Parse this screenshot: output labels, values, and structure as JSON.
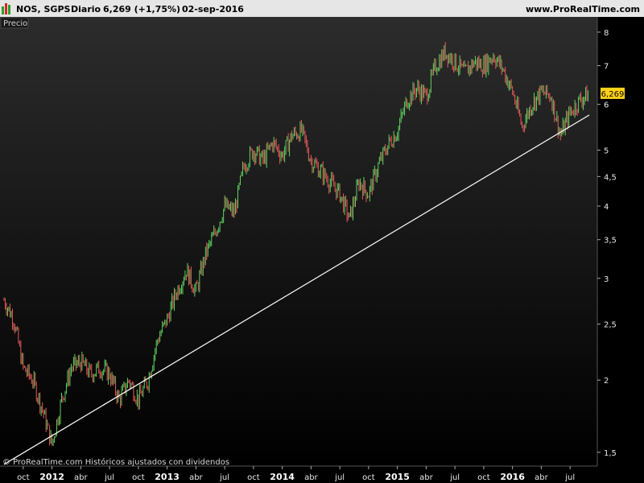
{
  "header": {
    "instrument": "NOS, SGPS",
    "period": "Diario",
    "last_change": "6,269 (+1,75%)",
    "date": "02-sep-2016",
    "site": "www.ProRealTime.com"
  },
  "panel_label": "Precio",
  "footer": "© ProRealTime.com Históricos ajustados con dividendos",
  "price_tag": "6,269",
  "colors": {
    "up": "#5fd35f",
    "down": "#e85a5a",
    "trendline": "#ffffff",
    "price_tag_bg": "#ffd21a",
    "header_bg": "#e6e6e6"
  },
  "chart_data": {
    "type": "line",
    "scale": "log",
    "y_ticks": [
      "1,5",
      "2",
      "2,5",
      "3",
      "3,5",
      "4",
      "4,5",
      "5",
      "6",
      "7",
      "8"
    ],
    "y_tick_values": [
      1.5,
      2,
      2.5,
      3,
      3.5,
      4,
      4.5,
      5,
      6,
      7,
      8
    ],
    "ylim": [
      1.42,
      8.5
    ],
    "x_ticks": [
      {
        "label": "oct",
        "bold": false
      },
      {
        "label": "2012",
        "bold": true
      },
      {
        "label": "abr",
        "bold": false
      },
      {
        "label": "jul",
        "bold": false
      },
      {
        "label": "oct",
        "bold": false
      },
      {
        "label": "2013",
        "bold": true
      },
      {
        "label": "abr",
        "bold": false
      },
      {
        "label": "jul",
        "bold": false
      },
      {
        "label": "oct",
        "bold": false
      },
      {
        "label": "2014",
        "bold": true
      },
      {
        "label": "abr",
        "bold": false
      },
      {
        "label": "jul",
        "bold": false
      },
      {
        "label": "oct",
        "bold": false
      },
      {
        "label": "2015",
        "bold": true
      },
      {
        "label": "abr",
        "bold": false
      },
      {
        "label": "jul",
        "bold": false
      },
      {
        "label": "oct",
        "bold": false
      },
      {
        "label": "2016",
        "bold": true
      },
      {
        "label": "abr",
        "bold": false
      },
      {
        "label": "jul",
        "bold": false
      }
    ],
    "x_range": [
      "2011-08",
      "2016-09"
    ],
    "series": [
      {
        "style": "bars",
        "points": [
          [
            "2011-08",
            2.75
          ],
          [
            "2011-09",
            2.55
          ],
          [
            "2011-10",
            2.1
          ],
          [
            "2011-11",
            2.0
          ],
          [
            "2011-12",
            1.78
          ],
          [
            "2012-01",
            1.55
          ],
          [
            "2012-02",
            1.85
          ],
          [
            "2012-03",
            2.1
          ],
          [
            "2012-04",
            2.15
          ],
          [
            "2012-05",
            2.05
          ],
          [
            "2012-06",
            2.1
          ],
          [
            "2012-07",
            2.05
          ],
          [
            "2012-08",
            1.85
          ],
          [
            "2012-09",
            2.0
          ],
          [
            "2012-10",
            1.85
          ],
          [
            "2012-11",
            2.0
          ],
          [
            "2012-12",
            2.35
          ],
          [
            "2013-01",
            2.55
          ],
          [
            "2013-02",
            2.85
          ],
          [
            "2013-03",
            3.1
          ],
          [
            "2013-04",
            2.85
          ],
          [
            "2013-05",
            3.3
          ],
          [
            "2013-06",
            3.6
          ],
          [
            "2013-07",
            4.0
          ],
          [
            "2013-08",
            3.9
          ],
          [
            "2013-09",
            4.7
          ],
          [
            "2013-10",
            5.0
          ],
          [
            "2013-11",
            4.8
          ],
          [
            "2013-12",
            5.15
          ],
          [
            "2014-01",
            4.9
          ],
          [
            "2014-02",
            5.3
          ],
          [
            "2014-03",
            5.4
          ],
          [
            "2014-04",
            4.8
          ],
          [
            "2014-05",
            4.6
          ],
          [
            "2014-06",
            4.4
          ],
          [
            "2014-07",
            4.2
          ],
          [
            "2014-08",
            3.8
          ],
          [
            "2014-09",
            4.4
          ],
          [
            "2014-10",
            4.2
          ],
          [
            "2014-11",
            4.7
          ],
          [
            "2014-12",
            5.1
          ],
          [
            "2015-01",
            5.4
          ],
          [
            "2015-02",
            6.1
          ],
          [
            "2015-03",
            6.4
          ],
          [
            "2015-04",
            6.2
          ],
          [
            "2015-05",
            7.0
          ],
          [
            "2015-06",
            7.4
          ],
          [
            "2015-07",
            7.1
          ],
          [
            "2015-08",
            6.8
          ],
          [
            "2015-09",
            7.1
          ],
          [
            "2015-10",
            7.0
          ],
          [
            "2015-11",
            7.3
          ],
          [
            "2015-12",
            6.9
          ],
          [
            "2016-01",
            6.3
          ],
          [
            "2016-02",
            5.5
          ],
          [
            "2016-03",
            6.0
          ],
          [
            "2016-04",
            6.3
          ],
          [
            "2016-05",
            6.2
          ],
          [
            "2016-06",
            5.3
          ],
          [
            "2016-07",
            5.8
          ],
          [
            "2016-08",
            6.1
          ],
          [
            "2016-09",
            6.27
          ]
        ]
      },
      {
        "style": "trendline",
        "points": [
          [
            "2011-08",
            1.43
          ],
          [
            "2016-09",
            5.75
          ]
        ]
      }
    ],
    "grid": false
  }
}
